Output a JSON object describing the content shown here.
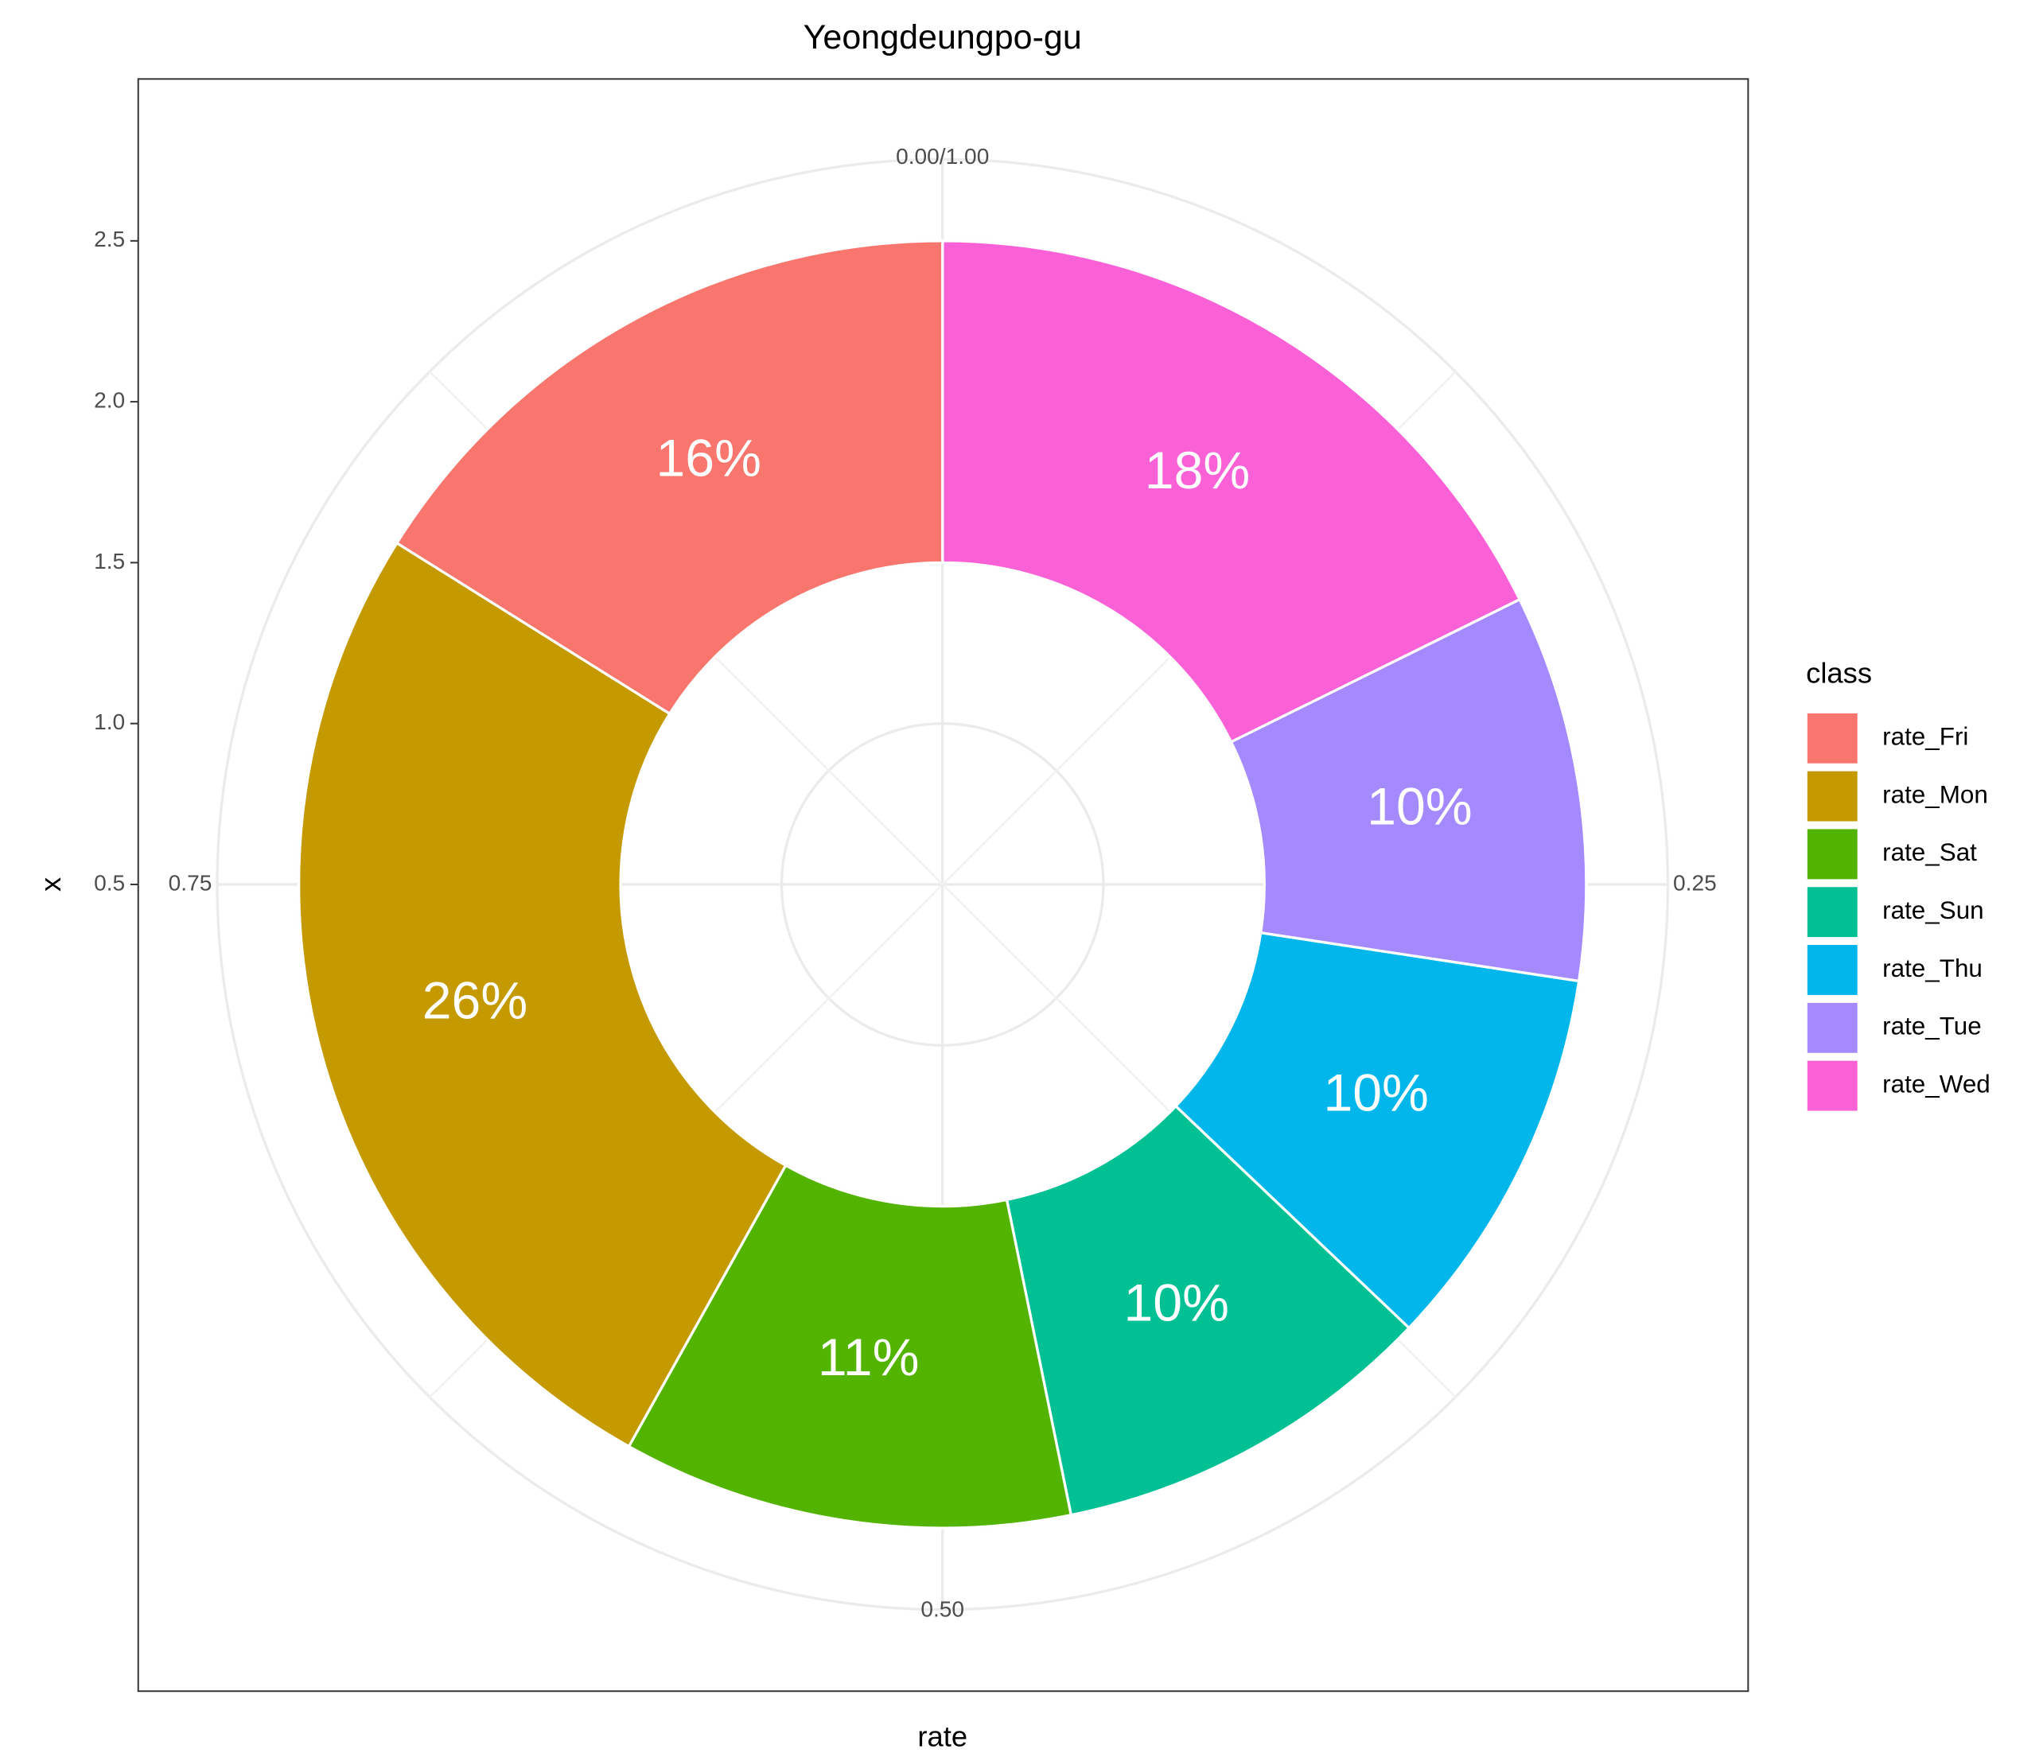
{
  "chart_data": {
    "type": "donut",
    "title": "Yeongdeungpo-gu",
    "x_label": "rate",
    "y_label": "x",
    "legend_title": "class",
    "legend_position": "right",
    "series": [
      {
        "name": "rate_Fri",
        "color": "#F8766D",
        "values": [
          0.161
        ],
        "value_labels": [
          "16%"
        ]
      },
      {
        "name": "rate_Mon",
        "color": "#C49A00",
        "values": [
          0.258
        ],
        "value_labels": [
          "26%"
        ]
      },
      {
        "name": "rate_Sat",
        "color": "#53B400",
        "values": [
          0.113
        ],
        "value_labels": [
          "11%"
        ]
      },
      {
        "name": "rate_Sun",
        "color": "#00C094",
        "values": [
          0.097
        ],
        "value_labels": [
          "10%"
        ]
      },
      {
        "name": "rate_Thu",
        "color": "#00B6EB",
        "values": [
          0.097
        ],
        "value_labels": [
          "10%"
        ]
      },
      {
        "name": "rate_Tue",
        "color": "#A58AFF",
        "values": [
          0.097
        ],
        "value_labels": [
          "10%"
        ]
      },
      {
        "name": "rate_Wed",
        "color": "#FB61D7",
        "values": [
          0.177
        ],
        "value_labels": [
          "18%"
        ]
      }
    ],
    "ring": [
      1.5,
      2.5
    ],
    "xlim": [
      0,
      1
    ],
    "xticks": [
      {
        "value": 0,
        "label": "0.00/1.00"
      },
      0.25,
      {
        "value": 0.5,
        "label": "0.50"
      },
      0.75
    ],
    "ylim": [
      0.5,
      2.5
    ],
    "yticks": [
      {
        "value": 0.5,
        "label": "0.5"
      },
      {
        "value": 1,
        "label": "1.0"
      },
      1.5,
      {
        "value": 2,
        "label": "2.0"
      },
      2.5
    ],
    "grid": true
  }
}
